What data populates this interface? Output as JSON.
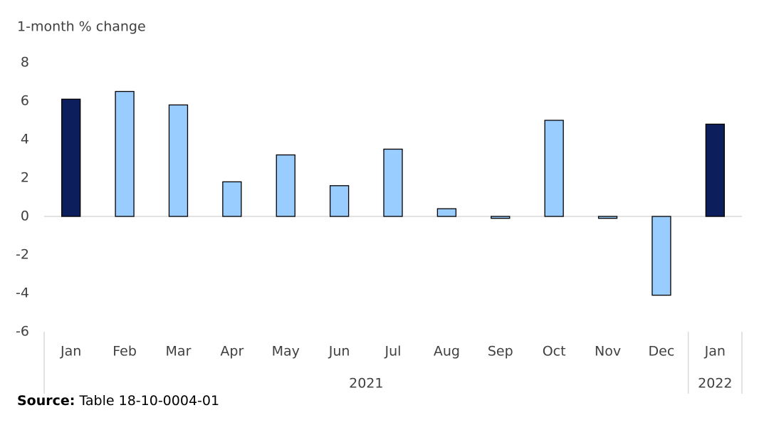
{
  "chart_data": {
    "type": "bar",
    "y_label": "1-month % change",
    "categories": [
      "Jan",
      "Feb",
      "Mar",
      "Apr",
      "May",
      "Jun",
      "Jul",
      "Aug",
      "Sep",
      "Oct",
      "Nov",
      "Dec",
      "Jan"
    ],
    "years": [
      "2021",
      "2021",
      "2021",
      "2021",
      "2021",
      "2021",
      "2021",
      "2021",
      "2021",
      "2021",
      "2021",
      "2021",
      "2022"
    ],
    "values": [
      6.1,
      6.5,
      5.8,
      1.8,
      3.2,
      1.6,
      3.5,
      0.4,
      -0.1,
      5.0,
      -0.1,
      -4.1,
      4.8
    ],
    "colors": [
      "#0c1e5b",
      "#99ccff",
      "#99ccff",
      "#99ccff",
      "#99ccff",
      "#99ccff",
      "#99ccff",
      "#99ccff",
      "#99ccff",
      "#99ccff",
      "#99ccff",
      "#99ccff",
      "#0c1e5b"
    ],
    "ylim": [
      -6,
      8
    ],
    "yticks": [
      -6,
      -4,
      -2,
      0,
      2,
      4,
      6,
      8
    ],
    "source_label": "Source:",
    "source": "Table 18-10-0004-01"
  }
}
